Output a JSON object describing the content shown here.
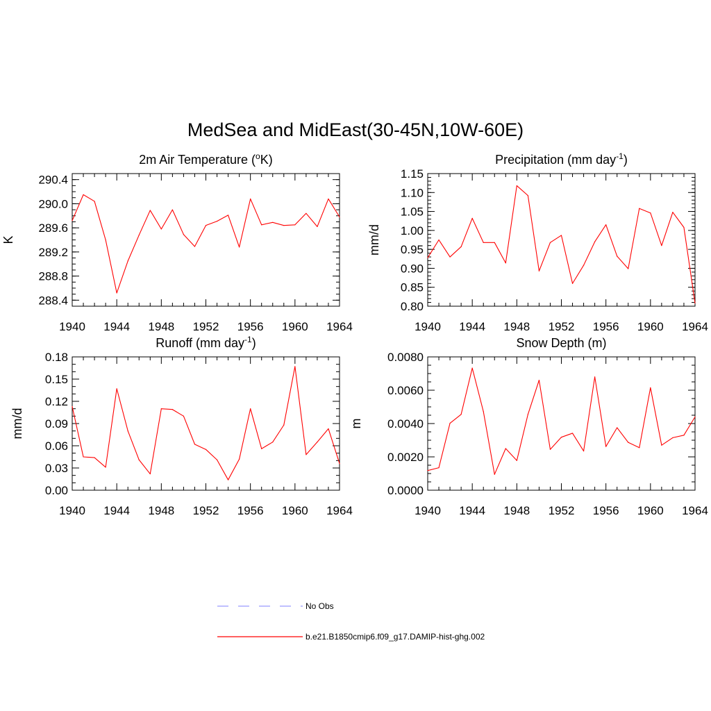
{
  "figure": {
    "title": "MedSea and MidEast(30-45N,10W-60E)"
  },
  "chart_data": [
    {
      "type": "line",
      "title_main": "2m Air Temperature (",
      "title_sup": "o",
      "title_tail": "K)",
      "ylabel": "K",
      "xlim": [
        1940,
        1964
      ],
      "ylim": [
        288.3,
        290.5
      ],
      "x_ticks": [
        "1940",
        "1944",
        "1948",
        "1952",
        "1956",
        "1960",
        "1964"
      ],
      "x_tick_values": [
        1940,
        1944,
        1948,
        1952,
        1956,
        1960,
        1964
      ],
      "y_ticks": [
        "288.4",
        "288.8",
        "289.2",
        "289.6",
        "290.0",
        "290.4"
      ],
      "y_tick_values": [
        288.4,
        288.8,
        289.2,
        289.6,
        290.0,
        290.4
      ],
      "y_minor_step": 0.1,
      "series": [
        {
          "name": "b.e21.B1850cmip6.f09_g17.DAMIP-hist-ghg.002",
          "color": "#ff0000",
          "x": [
            1940,
            1941,
            1942,
            1943,
            1944,
            1945,
            1946,
            1947,
            1948,
            1949,
            1950,
            1951,
            1952,
            1953,
            1954,
            1955,
            1956,
            1957,
            1958,
            1959,
            1960,
            1961,
            1962,
            1963,
            1964
          ],
          "y": [
            289.72,
            290.15,
            290.04,
            289.4,
            288.52,
            289.05,
            289.48,
            289.89,
            289.58,
            289.9,
            289.49,
            289.29,
            289.64,
            289.71,
            289.81,
            289.28,
            290.08,
            289.65,
            289.69,
            289.64,
            289.65,
            289.84,
            289.62,
            290.08,
            289.78
          ]
        }
      ]
    },
    {
      "type": "line",
      "title_main": "Precipitation (mm day",
      "title_sup": "-1",
      "title_tail": ")",
      "ylabel": "mm/d",
      "xlim": [
        1940,
        1964
      ],
      "ylim": [
        0.8,
        1.15
      ],
      "x_ticks": [
        "1940",
        "1944",
        "1948",
        "1952",
        "1956",
        "1960",
        "1964"
      ],
      "x_tick_values": [
        1940,
        1944,
        1948,
        1952,
        1956,
        1960,
        1964
      ],
      "y_ticks": [
        "0.80",
        "0.85",
        "0.90",
        "0.95",
        "1.00",
        "1.05",
        "1.10",
        "1.15"
      ],
      "y_tick_values": [
        0.8,
        0.85,
        0.9,
        0.95,
        1.0,
        1.05,
        1.1,
        1.15
      ],
      "y_minor_step": 0.01,
      "series": [
        {
          "name": "b.e21.B1850cmip6.f09_g17.DAMIP-hist-ghg.002",
          "color": "#ff0000",
          "x": [
            1940,
            1941,
            1942,
            1943,
            1944,
            1945,
            1946,
            1947,
            1948,
            1949,
            1950,
            1951,
            1952,
            1953,
            1954,
            1955,
            1956,
            1957,
            1958,
            1959,
            1960,
            1961,
            1962,
            1963,
            1964
          ],
          "y": [
            0.928,
            0.975,
            0.93,
            0.957,
            1.032,
            0.968,
            0.968,
            0.914,
            1.118,
            1.092,
            0.893,
            0.968,
            0.987,
            0.86,
            0.908,
            0.97,
            1.015,
            0.932,
            0.899,
            1.058,
            1.046,
            0.96,
            1.048,
            1.008,
            0.808
          ]
        }
      ]
    },
    {
      "type": "line",
      "title_main": "Runoff (mm day",
      "title_sup": "-1",
      "title_tail": ")",
      "ylabel": "mm/d",
      "xlim": [
        1940,
        1964
      ],
      "ylim": [
        0.0,
        0.18
      ],
      "x_ticks": [
        "1940",
        "1944",
        "1948",
        "1952",
        "1956",
        "1960",
        "1964"
      ],
      "x_tick_values": [
        1940,
        1944,
        1948,
        1952,
        1956,
        1960,
        1964
      ],
      "y_ticks": [
        "0.00",
        "0.03",
        "0.06",
        "0.09",
        "0.12",
        "0.15",
        "0.18"
      ],
      "y_tick_values": [
        0.0,
        0.03,
        0.06,
        0.09,
        0.12,
        0.15,
        0.18
      ],
      "y_minor_step": 0.01,
      "series": [
        {
          "name": "b.e21.B1850cmip6.f09_g17.DAMIP-hist-ghg.002",
          "color": "#ff0000",
          "x": [
            1940,
            1941,
            1942,
            1943,
            1944,
            1945,
            1946,
            1947,
            1948,
            1949,
            1950,
            1951,
            1952,
            1953,
            1954,
            1955,
            1956,
            1957,
            1958,
            1959,
            1960,
            1961,
            1962,
            1963,
            1964
          ],
          "y": [
            0.113,
            0.045,
            0.044,
            0.031,
            0.137,
            0.08,
            0.041,
            0.022,
            0.11,
            0.109,
            0.1,
            0.062,
            0.055,
            0.041,
            0.014,
            0.042,
            0.11,
            0.056,
            0.065,
            0.088,
            0.167,
            0.048,
            0.065,
            0.083,
            0.036
          ]
        }
      ]
    },
    {
      "type": "line",
      "title_main": "Snow Depth (m)",
      "title_sup": "",
      "title_tail": "",
      "ylabel": "m",
      "xlim": [
        1940,
        1964
      ],
      "ylim": [
        0.0,
        0.008
      ],
      "x_ticks": [
        "1940",
        "1944",
        "1948",
        "1952",
        "1956",
        "1960",
        "1964"
      ],
      "x_tick_values": [
        1940,
        1944,
        1948,
        1952,
        1956,
        1960,
        1964
      ],
      "y_ticks": [
        "0.0000",
        "0.0020",
        "0.0040",
        "0.0060",
        "0.0080"
      ],
      "y_tick_values": [
        0.0,
        0.002,
        0.004,
        0.006,
        0.008
      ],
      "y_minor_step": 0.0005,
      "series": [
        {
          "name": "b.e21.B1850cmip6.f09_g17.DAMIP-hist-ghg.002",
          "color": "#ff0000",
          "x": [
            1940,
            1941,
            1942,
            1943,
            1944,
            1945,
            1946,
            1947,
            1948,
            1949,
            1950,
            1951,
            1952,
            1953,
            1954,
            1955,
            1956,
            1957,
            1958,
            1959,
            1960,
            1961,
            1962,
            1963,
            1964
          ],
          "y": [
            0.00118,
            0.00135,
            0.00402,
            0.00455,
            0.00733,
            0.00472,
            0.00095,
            0.0025,
            0.00178,
            0.00455,
            0.0066,
            0.00245,
            0.00318,
            0.00342,
            0.00235,
            0.0068,
            0.00262,
            0.00375,
            0.00287,
            0.00255,
            0.00615,
            0.0027,
            0.00315,
            0.0033,
            0.0044
          ]
        }
      ]
    }
  ],
  "legend": {
    "items": [
      {
        "label": "No Obs",
        "color": "#9999ff",
        "style": "dashed"
      },
      {
        "label": "b.e21.B1850cmip6.f09_g17.DAMIP-hist-ghg.002",
        "color": "#ff0000",
        "style": "solid"
      }
    ]
  }
}
